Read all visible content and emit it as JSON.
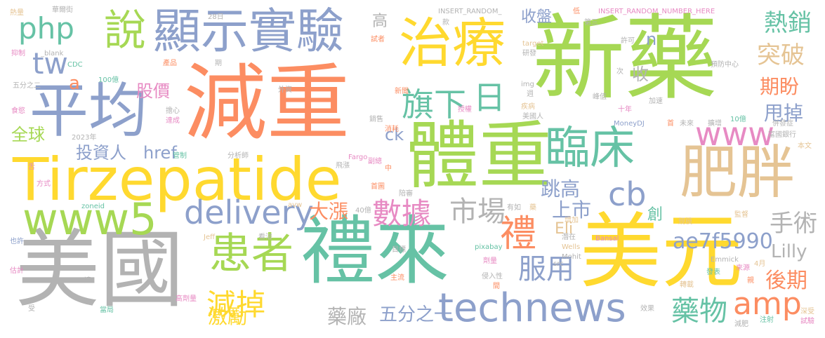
{
  "palette": {
    "green": "#a6d854",
    "orange": "#fc8d62",
    "blue": "#8da0cb",
    "yellow": "#ffd92f",
    "teal": "#66c2a5",
    "gray": "#b3b3b3",
    "tan": "#e5c494",
    "pink": "#e78ac3"
  },
  "words": [
    {
      "text": "新藥",
      "color": "green"
    },
    {
      "text": "減重",
      "color": "orange"
    },
    {
      "text": "體重",
      "color": "green"
    },
    {
      "text": "禮來",
      "color": "teal"
    },
    {
      "text": "美國",
      "color": "gray"
    },
    {
      "text": "美元",
      "color": "yellow"
    },
    {
      "text": "Tirzepatide",
      "color": "yellow"
    },
    {
      "text": "平均",
      "color": "blue"
    },
    {
      "text": "治療",
      "color": "yellow"
    },
    {
      "text": "顯示實驗",
      "color": "blue"
    },
    {
      "text": "說",
      "color": "green"
    },
    {
      "text": "肥胖",
      "color": "tan"
    },
    {
      "text": "臨床",
      "color": "teal"
    },
    {
      "text": "www5",
      "color": "green"
    },
    {
      "text": "患者",
      "color": "green"
    },
    {
      "text": "technews",
      "color": "blue"
    },
    {
      "text": "delivery",
      "color": "blue"
    },
    {
      "text": "php",
      "color": "teal"
    },
    {
      "text": "tw",
      "color": "blue"
    },
    {
      "text": "旗下",
      "color": "teal"
    },
    {
      "text": "日",
      "color": "teal"
    },
    {
      "text": "www",
      "color": "pink"
    },
    {
      "text": "cb",
      "color": "blue"
    },
    {
      "text": "禮",
      "color": "orange"
    },
    {
      "text": "數據",
      "color": "pink"
    },
    {
      "text": "市場",
      "color": "gray"
    },
    {
      "text": "減掉",
      "color": "yellow"
    },
    {
      "text": "amp",
      "color": "orange"
    },
    {
      "text": "服用",
      "color": "blue"
    },
    {
      "text": "ae7f5990",
      "color": "blue"
    },
    {
      "text": "藥物",
      "color": "teal"
    },
    {
      "text": "突破",
      "color": "tan"
    },
    {
      "text": "熱銷",
      "color": "teal"
    },
    {
      "text": "手術",
      "color": "gray"
    },
    {
      "text": "Lilly",
      "color": "gray"
    },
    {
      "text": "後期",
      "color": "orange"
    },
    {
      "text": "五分之一",
      "color": "blue"
    },
    {
      "text": "激勵",
      "color": "yellow"
    },
    {
      "text": "藥廠",
      "color": "gray"
    },
    {
      "text": "跳高",
      "color": "blue"
    },
    {
      "text": "上市",
      "color": "blue"
    },
    {
      "text": "大漲",
      "color": "orange"
    },
    {
      "text": "收盤",
      "color": "blue"
    },
    {
      "text": "期盼",
      "color": "orange"
    },
    {
      "text": "甩掉",
      "color": "blue"
    },
    {
      "text": "股價",
      "color": "pink"
    },
    {
      "text": "全球",
      "color": "green"
    },
    {
      "text": "投資人",
      "color": "blue"
    },
    {
      "text": "href",
      "color": "blue"
    },
    {
      "text": "ck",
      "color": "blue"
    },
    {
      "text": "Eli",
      "color": "tan"
    },
    {
      "text": "創",
      "color": "teal"
    },
    {
      "text": "收",
      "color": "gray"
    },
    {
      "text": "n",
      "color": "blue"
    },
    {
      "text": "高",
      "color": "gray"
    },
    {
      "text": "a",
      "color": "orange"
    },
    {
      "text": "INSERT_RANDOM_",
      "color": "gray"
    },
    {
      "text": "INSERT_RANDOM_NUMBER_HERE",
      "color": "pink"
    },
    {
      "text": "28日",
      "color": "gray"
    },
    {
      "text": "熱量",
      "color": "tan"
    },
    {
      "text": "華爾街",
      "color": "gray"
    },
    {
      "text": "抑制",
      "color": "pink"
    },
    {
      "text": "_blank",
      "color": "gray"
    },
    {
      "text": "CDC",
      "color": "teal"
    },
    {
      "text": "100億",
      "color": "teal"
    },
    {
      "text": "食慾",
      "color": "pink"
    },
    {
      "text": "五分之二",
      "color": "gray"
    },
    {
      "text": "產品",
      "color": "orange"
    },
    {
      "text": "期",
      "color": "gray"
    },
    {
      "text": "外資",
      "color": "gray"
    },
    {
      "text": "擔心",
      "color": "gray"
    },
    {
      "text": "達成",
      "color": "pink"
    },
    {
      "text": "2023年",
      "color": "gray"
    },
    {
      "text": "管制",
      "color": "teal"
    },
    {
      "text": "分析師",
      "color": "gray"
    },
    {
      "text": "方式",
      "color": "pink"
    },
    {
      "text": "舌",
      "color": "pink"
    },
    {
      "text": "zoneid",
      "color": "teal"
    },
    {
      "text": "也許",
      "color": "blue"
    },
    {
      "text": "Jeff",
      "color": "tan"
    },
    {
      "text": "看法",
      "color": "gray"
    },
    {
      "text": "估計",
      "color": "pink"
    },
    {
      "text": "達",
      "color": "gray"
    },
    {
      "text": "受",
      "color": "gray"
    },
    {
      "text": "當局",
      "color": "teal"
    },
    {
      "text": "高劑量",
      "color": "pink"
    },
    {
      "text": "avw",
      "color": "tan"
    },
    {
      "text": "40億",
      "color": "gray"
    },
    {
      "text": "試者",
      "color": "orange"
    },
    {
      "text": "款",
      "color": "gray"
    },
    {
      "text": "新聞",
      "color": "orange"
    },
    {
      "text": "銷售",
      "color": "gray"
    },
    {
      "text": "消耗",
      "color": "orange"
    },
    {
      "text": "Fargo",
      "color": "pink"
    },
    {
      "text": "副總",
      "color": "pink"
    },
    {
      "text": "飛漲",
      "color": "gray"
    },
    {
      "text": "中",
      "color": "orange"
    },
    {
      "text": "首圖",
      "color": "orange"
    },
    {
      "text": "陪審",
      "color": "gray"
    },
    {
      "text": "有如",
      "color": "gray"
    },
    {
      "text": "藥",
      "color": "tan"
    },
    {
      "text": "增加",
      "color": "tan"
    },
    {
      "text": "目標",
      "color": "gray"
    },
    {
      "text": "主流",
      "color": "orange"
    },
    {
      "text": "pixabay",
      "color": "teal"
    },
    {
      "text": "劑量",
      "color": "pink"
    },
    {
      "text": "侵入性",
      "color": "gray"
    },
    {
      "text": "間",
      "color": "orange"
    },
    {
      "text": "Bansal",
      "color": "pink"
    },
    {
      "text": "潛在",
      "color": "gray"
    },
    {
      "text": "Wells",
      "color": "tan"
    },
    {
      "text": "src",
      "color": "gray"
    },
    {
      "text": "Mohit",
      "color": "gray"
    },
    {
      "text": "target",
      "color": "tan"
    },
    {
      "text": "研發",
      "color": "gray"
    },
    {
      "text": "低",
      "color": "orange"
    },
    {
      "text": "第三",
      "color": "gray"
    },
    {
      "text": "img",
      "color": "gray"
    },
    {
      "text": "週",
      "color": "gray"
    },
    {
      "text": "授權",
      "color": "pink"
    },
    {
      "text": "疾病",
      "color": "tan"
    },
    {
      "text": "美國人",
      "color": "gray"
    },
    {
      "text": "MoneyDJ",
      "color": "blue"
    },
    {
      "text": "擴增",
      "color": "gray"
    },
    {
      "text": "首",
      "color": "orange"
    },
    {
      "text": "未來",
      "color": "gray"
    },
    {
      "text": "許可",
      "color": "gray"
    },
    {
      "text": "峰值",
      "color": "gray"
    },
    {
      "text": "次",
      "color": "gray"
    },
    {
      "text": "十年",
      "color": "pink"
    },
    {
      "text": "加速",
      "color": "gray"
    },
    {
      "text": "預防中心",
      "color": "gray"
    },
    {
      "text": "10億",
      "color": "teal"
    },
    {
      "text": "併發症",
      "color": "gray"
    },
    {
      "text": "富國銀行",
      "color": "gray"
    },
    {
      "text": "本文",
      "color": "tan"
    },
    {
      "text": "監督",
      "color": "tan"
    },
    {
      "text": "規模",
      "color": "tan"
    },
    {
      "text": "Emmick",
      "color": "gray"
    },
    {
      "text": "發表",
      "color": "teal"
    },
    {
      "text": "來源",
      "color": "pink"
    },
    {
      "text": "4月",
      "color": "tan"
    },
    {
      "text": "轉載",
      "color": "tan"
    },
    {
      "text": "親",
      "color": "orange"
    },
    {
      "text": "效果",
      "color": "gray"
    },
    {
      "text": "深受",
      "color": "tan"
    },
    {
      "text": "試驗",
      "color": "pink"
    },
    {
      "text": "減肥",
      "color": "gray"
    },
    {
      "text": "注射",
      "color": "teal"
    }
  ]
}
